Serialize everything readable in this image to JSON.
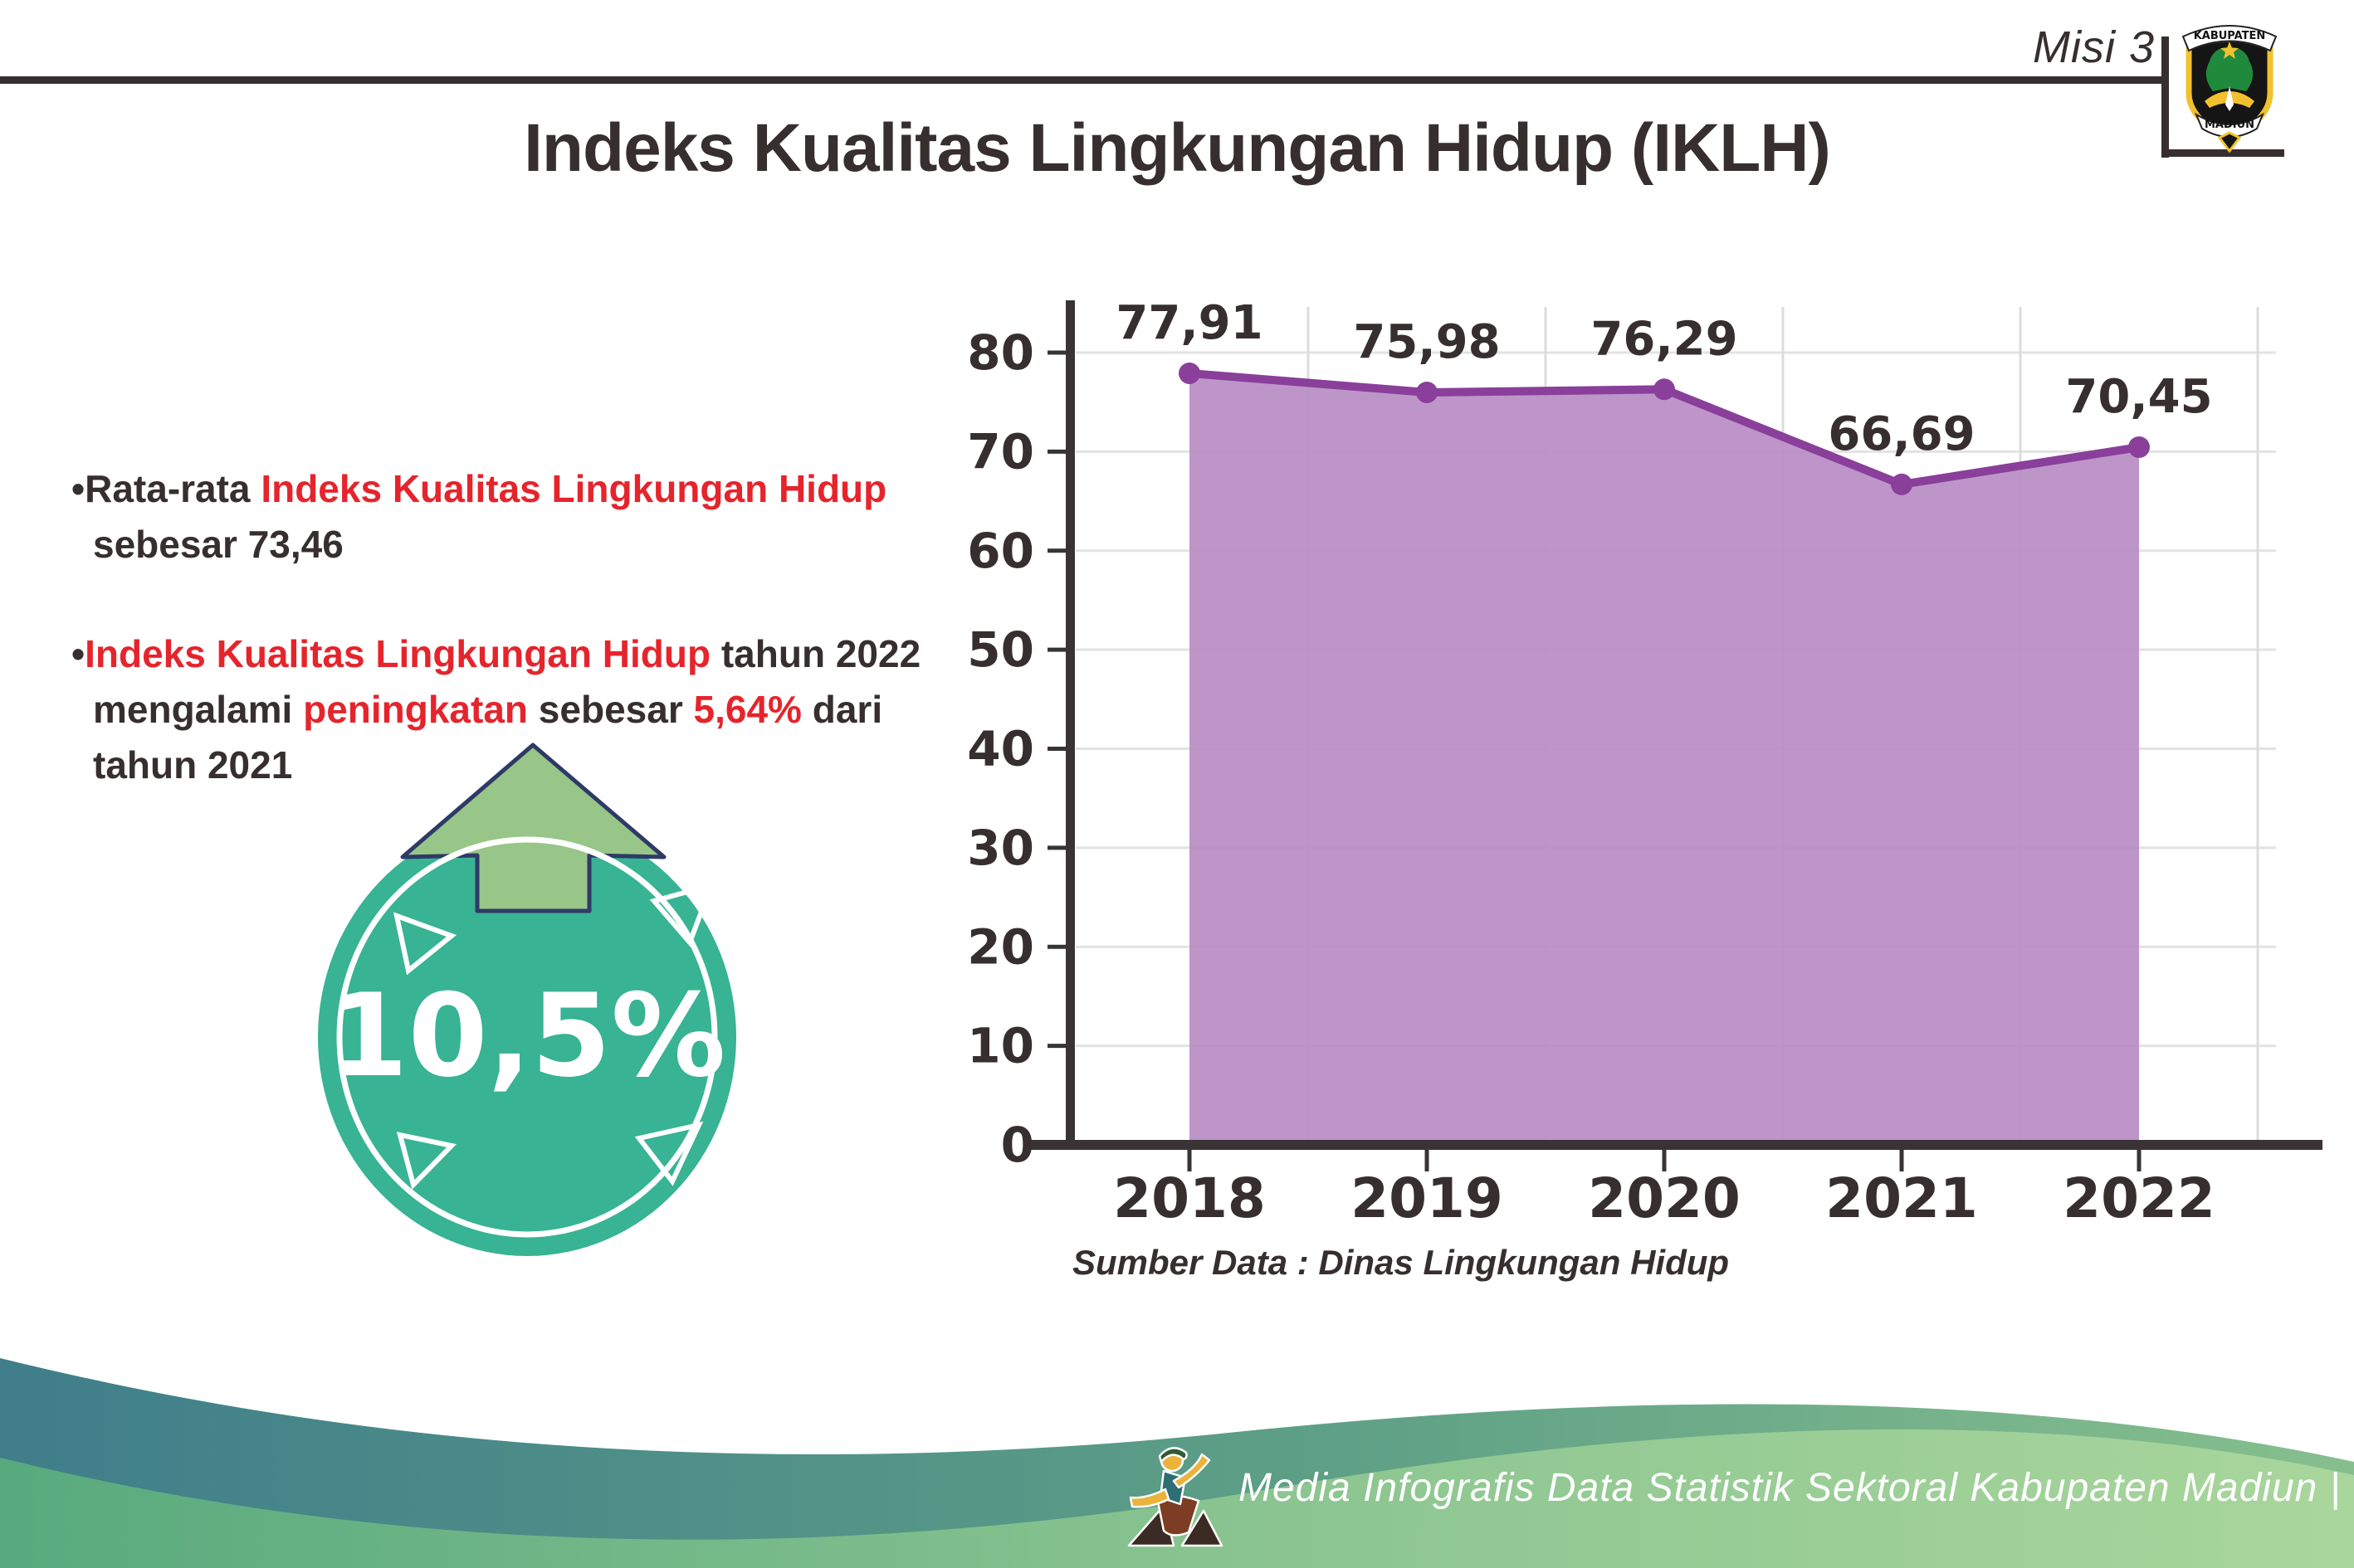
{
  "header": {
    "misi_label": "Misi 3",
    "logo": {
      "top_banner": "KABUPATEN",
      "bottom_banner": "MADIUN"
    }
  },
  "title": "Indeks Kualitas Lingkungan Hidup (IKLH)",
  "bullet_marker": "•",
  "bullets": [
    {
      "lines": [
        [
          {
            "text": "Rata-rata ",
            "color": "dark"
          },
          {
            "text": "Indeks Kualitas Lingkungan Hidup",
            "color": "red"
          }
        ],
        [
          {
            "text": "sebesar 73,46",
            "color": "dark"
          }
        ]
      ]
    },
    {
      "lines": [
        [
          {
            "text": "Indeks Kualitas Lingkungan Hidup",
            "color": "red"
          },
          {
            "text": " tahun 2022",
            "color": "dark"
          }
        ],
        [
          {
            "text": "mengalami ",
            "color": "dark"
          },
          {
            "text": "peningkatan",
            "color": "red"
          },
          {
            "text": " sebesar ",
            "color": "dark"
          },
          {
            "text": "5,64%",
            "color": "red"
          },
          {
            "text": " dari",
            "color": "dark"
          }
        ],
        [
          {
            "text": "tahun 2021",
            "color": "dark"
          }
        ]
      ]
    }
  ],
  "badge": {
    "value": "10,5%",
    "direction": "up-arrow"
  },
  "chart_data": {
    "type": "area",
    "title": "",
    "categories": [
      "2018",
      "2019",
      "2020",
      "2021",
      "2022"
    ],
    "values": [
      77.91,
      75.98,
      76.29,
      66.69,
      70.45
    ],
    "value_labels": [
      "77,91",
      "75,98",
      "76,29",
      "66,69",
      "70,45"
    ],
    "xlabel": "",
    "ylabel": "",
    "ylim": [
      0,
      80
    ],
    "ytick_step": 10,
    "yticks": [
      0,
      10,
      20,
      30,
      40,
      50,
      60,
      70,
      80
    ],
    "grid": true,
    "legend": false,
    "source": "Sumber Data : Dinas Lingkungan Hidup",
    "line_color": "#8a3f9b",
    "fill_color": "#b98cc4",
    "marker_color": "#8a3f9b",
    "axis_color": "#3a3335",
    "label_color": "#372f2f"
  },
  "footer": {
    "caption": "Media Infografis Data Statistik Sektoral Kabupaten Madiun |"
  },
  "colors": {
    "text_dark": "#372f2f",
    "text_red": "#e5242c",
    "badge_teal": "#38b394",
    "arrow_green": "#98c588",
    "arrow_outline": "#2e3a66",
    "wave_teal": "#3f7e8a",
    "wave_green": "#8cc591"
  }
}
